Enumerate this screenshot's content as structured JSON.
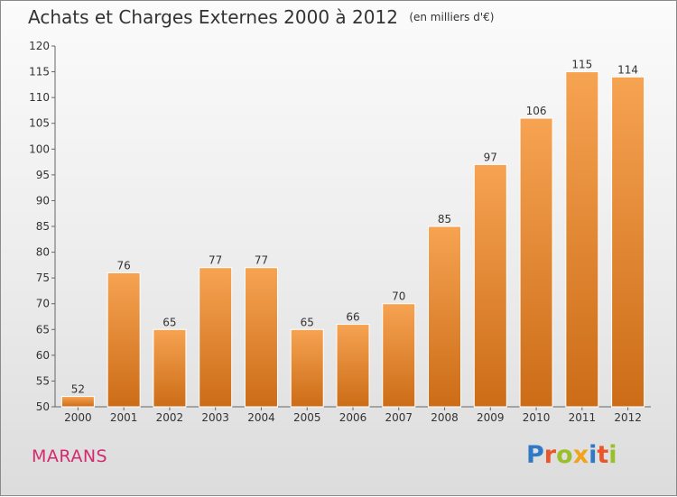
{
  "header": {
    "title": "Achats et Charges Externes 2000 à 2012",
    "unit": "(en milliers d'€)"
  },
  "footer": {
    "place": "MARANS",
    "logo_text": "Proxiti",
    "logo_colors": [
      "#2f79c6",
      "#e8562a",
      "#9bbf2a",
      "#f2a31c",
      "#2f79c6",
      "#e8562a",
      "#9bbf2a"
    ]
  },
  "colors": {
    "bar_top": "#f6a352",
    "bar_bottom": "#cc6c17",
    "title_text": "#333333",
    "place_text": "#d42a6e"
  },
  "chart_data": {
    "type": "bar",
    "title": "Achats et Charges Externes 2000 à 2012",
    "subtitle": "(en milliers d'€)",
    "xlabel": "",
    "ylabel": "",
    "categories": [
      "2000",
      "2001",
      "2002",
      "2003",
      "2004",
      "2005",
      "2006",
      "2007",
      "2008",
      "2009",
      "2010",
      "2011",
      "2012"
    ],
    "values": [
      52,
      76,
      65,
      77,
      77,
      65,
      66,
      70,
      85,
      97,
      106,
      115,
      114
    ],
    "ylim": [
      50,
      120
    ],
    "yticks": [
      50,
      55,
      60,
      65,
      70,
      75,
      80,
      85,
      90,
      95,
      100,
      105,
      110,
      115,
      120
    ],
    "grid": false,
    "data_labels": true
  }
}
